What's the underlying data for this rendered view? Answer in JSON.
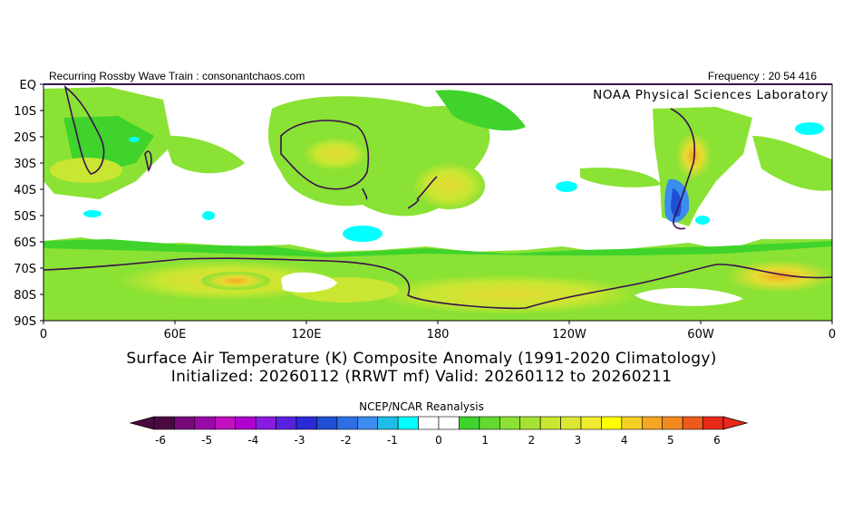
{
  "header": {
    "left_text": "Recurring Rossby Wave Train : consonantchaos.com",
    "right_text": "Frequency : 20 54 416",
    "source_label": "NOAA Physical Sciences Laboratory"
  },
  "map": {
    "lat_labels": [
      "EQ",
      "10S",
      "20S",
      "30S",
      "40S",
      "50S",
      "60S",
      "70S",
      "80S",
      "90S"
    ],
    "lon_labels": [
      "0",
      "60E",
      "120E",
      "180",
      "120W",
      "60W",
      "0"
    ],
    "colors": {
      "white": "#ffffff",
      "cyan": "#00ffff",
      "green1": "#3fd32b",
      "green2": "#8ae234",
      "yellowgreen": "#c9e632",
      "yellow": "#e6dc32",
      "orange": "#f5a623",
      "blue1": "#3b8df0",
      "blue2": "#1f4fd6",
      "coast": "#3a0f4f"
    }
  },
  "titles": {
    "line1": "Surface Air Temperature (K) Composite Anomaly (1991-2020 Climatology)",
    "line2": "Initialized: 20260112 (RRWT mf) Valid: 20260112 to 20260211"
  },
  "colorbar": {
    "title": "NCEP/NCAR Reanalysis",
    "tick_labels": [
      "-6",
      "-5",
      "-4",
      "-3",
      "-2",
      "-1",
      "0",
      "1",
      "2",
      "3",
      "4",
      "5",
      "6"
    ],
    "swatches": [
      "#4a0a3f",
      "#7a0a7a",
      "#9a0aa8",
      "#c010c0",
      "#b000d0",
      "#8a1ae0",
      "#5a20e0",
      "#2a2ad8",
      "#1f4fd6",
      "#2f6fe6",
      "#3b8df0",
      "#1ebce8",
      "#00ffff",
      "#ffffff",
      "#ffffff",
      "#3fd32b",
      "#62da2f",
      "#8ae234",
      "#a6e234",
      "#c9e632",
      "#dde632",
      "#f0ea30",
      "#ffff00",
      "#f5cf23",
      "#f5a623",
      "#f28a1e",
      "#ee5a1a",
      "#e82a1a"
    ]
  }
}
